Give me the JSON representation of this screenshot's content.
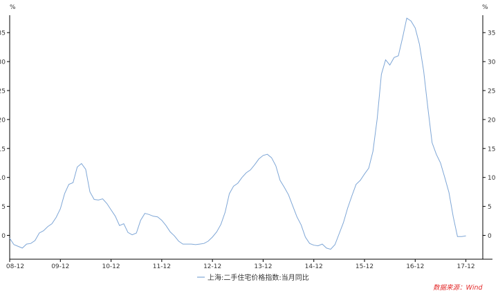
{
  "chart_data": {
    "type": "line",
    "title": "",
    "xlabel": "",
    "ylabel": "%",
    "ylabel_right": "%",
    "ylim": [
      -4,
      38
    ],
    "yticks": [
      0,
      5,
      10,
      15,
      20,
      25,
      30,
      35
    ],
    "x_range": [
      0,
      112
    ],
    "xticks": [
      {
        "label": "08-12",
        "x": 0
      },
      {
        "label": "09-12",
        "x": 12
      },
      {
        "label": "10-12",
        "x": 24
      },
      {
        "label": "11-12",
        "x": 36
      },
      {
        "label": "12-12",
        "x": 48
      },
      {
        "label": "13-12",
        "x": 60
      },
      {
        "label": "14-12",
        "x": 72
      },
      {
        "label": "15-12",
        "x": 84
      },
      {
        "label": "16-12",
        "x": 96
      },
      {
        "label": "17-12",
        "x": 108
      }
    ],
    "grid": false,
    "legend_position": "bottom",
    "line_color": "#7ea6d6",
    "series": [
      {
        "name": "上海:二手住宅价格指数:当月同比",
        "values": [
          -0.5,
          -1.6,
          -1.9,
          -2.2,
          -1.5,
          -1.4,
          -0.9,
          0.4,
          0.8,
          1.5,
          2.0,
          3.1,
          4.6,
          7.2,
          8.8,
          9.1,
          11.8,
          12.4,
          11.4,
          7.5,
          6.2,
          6.1,
          6.3,
          5.5,
          4.4,
          3.3,
          1.7,
          2.0,
          0.5,
          0.1,
          0.4,
          2.6,
          3.8,
          3.6,
          3.3,
          3.2,
          2.6,
          1.7,
          0.6,
          -0.1,
          -1.0,
          -1.5,
          -1.5,
          -1.5,
          -1.6,
          -1.5,
          -1.4,
          -1.0,
          -0.3,
          0.6,
          1.9,
          4.0,
          7.2,
          8.5,
          9.0,
          10.0,
          10.8,
          11.3,
          12.2,
          13.2,
          13.8,
          14.0,
          13.4,
          12.0,
          9.5,
          8.3,
          7.0,
          5.1,
          3.2,
          1.8,
          -0.3,
          -1.4,
          -1.7,
          -1.8,
          -1.5,
          -2.2,
          -2.4,
          -1.6,
          0.3,
          2.2,
          4.7,
          6.8,
          8.8,
          9.5,
          10.6,
          11.6,
          14.5,
          20.1,
          27.8,
          30.3,
          29.4,
          30.7,
          31.0,
          34.1,
          37.5,
          37.0,
          35.8,
          33.0,
          28.4,
          22.0,
          16.0,
          14.0,
          12.5,
          10.0,
          7.4,
          3.2,
          -0.2,
          -0.2,
          -0.1
        ]
      }
    ]
  },
  "source_label": "数据来源：Wind"
}
